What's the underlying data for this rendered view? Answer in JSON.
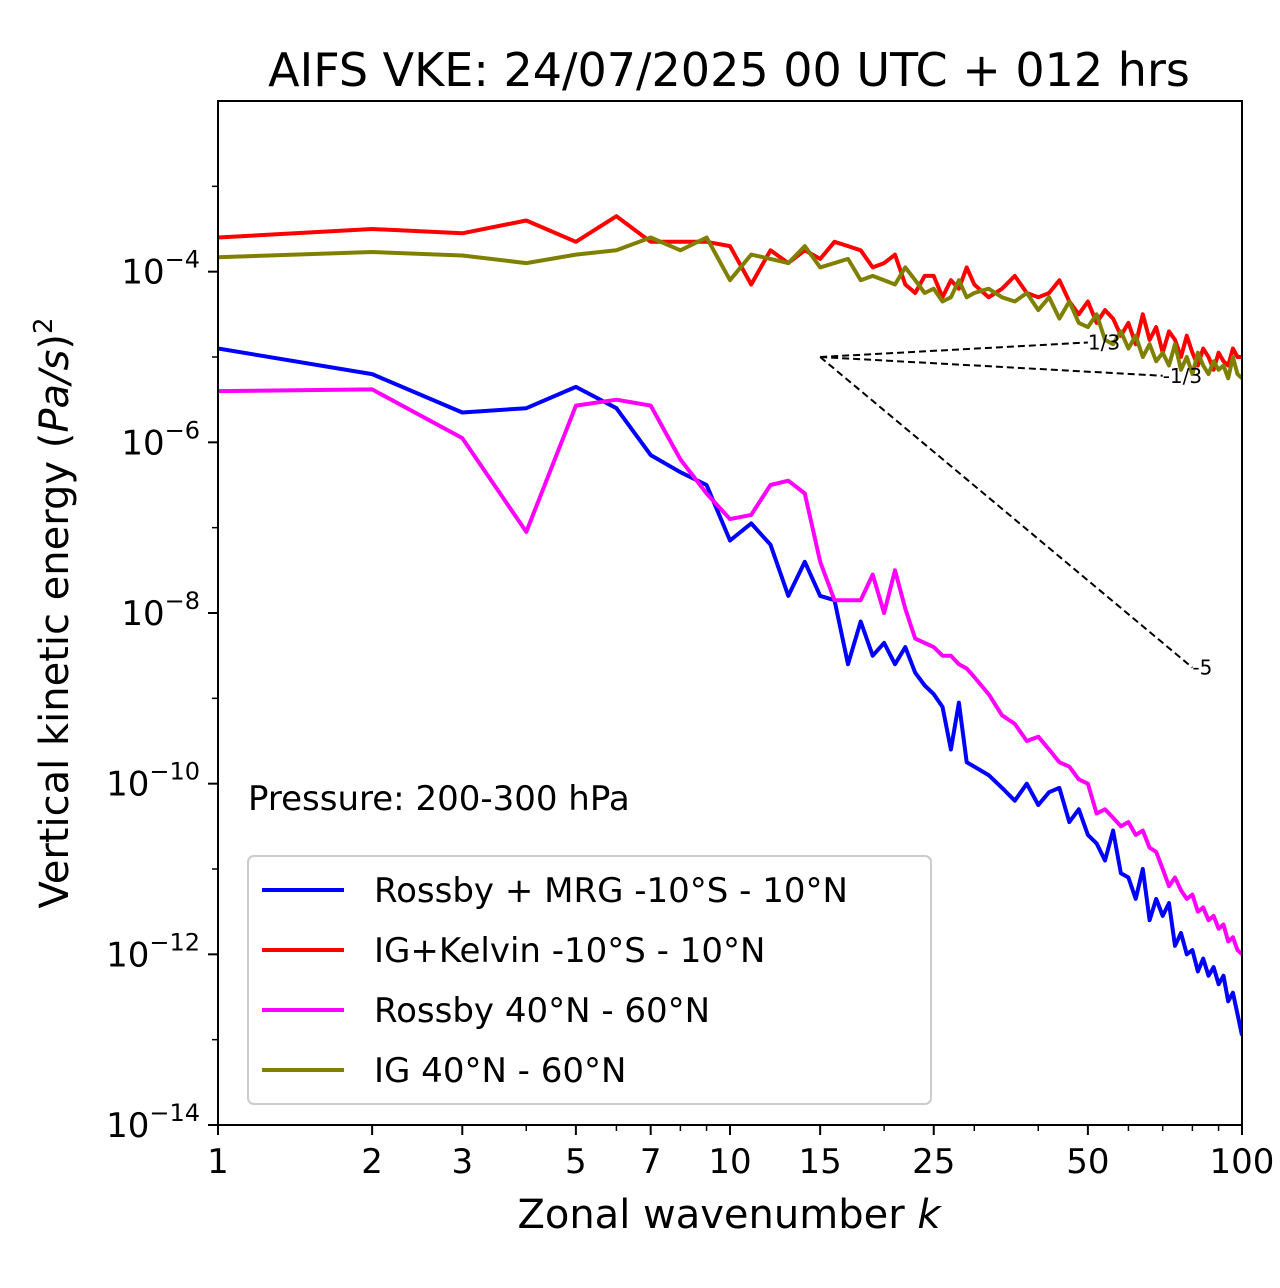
{
  "chart_data": {
    "type": "line",
    "title": "AIFS VKE: 24/07/2025 00 UTC + 012 hrs",
    "xlabel": "Zonal wavenumber k",
    "ylabel": "Vertical kinetic energy (Pa/s)^2",
    "x_scale": "log",
    "y_scale": "log",
    "xlim": [
      1,
      100
    ],
    "ylim": [
      1e-14,
      0.01
    ],
    "x_ticks": [
      1,
      2,
      3,
      5,
      7,
      10,
      15,
      25,
      50,
      100
    ],
    "x_tick_labels": [
      "1",
      "2",
      "3",
      "5",
      "7",
      "10",
      "15",
      "25",
      "50",
      "100"
    ],
    "y_ticks": [
      -14,
      -12,
      -10,
      -8,
      -6,
      -4
    ],
    "y_tick_base": "10",
    "y_tick_exponents": [
      "−14",
      "−12",
      "−10",
      "−8",
      "−6",
      "−4"
    ],
    "annotation": "Pressure: 200-300 hPa",
    "legend_position": "lower-left",
    "grid": false,
    "series": [
      {
        "name": "Rossby + MRG -10°S - 10°N",
        "color": "#0000ff",
        "x": [
          1,
          2,
          3,
          4,
          5,
          6,
          7,
          8,
          9,
          10,
          11,
          12,
          13,
          14,
          15,
          16,
          17,
          18,
          19,
          20,
          21,
          22,
          23,
          24,
          25,
          26,
          27,
          28,
          29,
          30,
          32,
          34,
          36,
          38,
          40,
          42,
          44,
          46,
          48,
          50,
          52,
          54,
          56,
          58,
          60,
          62,
          64,
          66,
          68,
          70,
          72,
          74,
          76,
          78,
          80,
          82,
          84,
          86,
          88,
          90,
          92,
          94,
          96,
          98,
          100
        ],
        "log10_values": [
          -4.9,
          -5.2,
          -5.65,
          -5.6,
          -5.35,
          -5.6,
          -6.15,
          -6.35,
          -6.5,
          -7.15,
          -6.95,
          -7.2,
          -7.8,
          -7.4,
          -7.8,
          -7.85,
          -8.6,
          -8.1,
          -8.5,
          -8.35,
          -8.6,
          -8.4,
          -8.7,
          -8.85,
          -8.95,
          -9.1,
          -9.6,
          -9.05,
          -9.75,
          -9.8,
          -9.9,
          -10.05,
          -10.2,
          -10.0,
          -10.25,
          -10.1,
          -10.05,
          -10.45,
          -10.3,
          -10.6,
          -10.7,
          -10.9,
          -10.55,
          -11.05,
          -11.1,
          -11.35,
          -11.0,
          -11.6,
          -11.35,
          -11.55,
          -11.4,
          -11.9,
          -11.75,
          -12.0,
          -11.95,
          -12.2,
          -12.05,
          -12.25,
          -12.15,
          -12.35,
          -12.25,
          -12.55,
          -12.45,
          -12.7,
          -12.95
        ]
      },
      {
        "name": "IG+Kelvin -10°S - 10°N",
        "color": "#ff0000",
        "x": [
          1,
          2,
          3,
          4,
          5,
          6,
          7,
          8,
          9,
          10,
          11,
          12,
          13,
          14,
          15,
          16,
          17,
          18,
          19,
          20,
          21,
          22,
          23,
          24,
          25,
          26,
          27,
          28,
          29,
          30,
          32,
          34,
          36,
          38,
          40,
          42,
          44,
          46,
          48,
          50,
          52,
          54,
          56,
          58,
          60,
          62,
          64,
          66,
          68,
          70,
          72,
          74,
          76,
          78,
          80,
          82,
          84,
          86,
          88,
          90,
          92,
          94,
          96,
          98,
          100
        ],
        "log10_values": [
          -3.6,
          -3.5,
          -3.55,
          -3.4,
          -3.65,
          -3.35,
          -3.65,
          -3.65,
          -3.65,
          -3.7,
          -4.15,
          -3.75,
          -3.9,
          -3.75,
          -3.85,
          -3.65,
          -3.7,
          -3.75,
          -3.95,
          -3.9,
          -3.8,
          -4.15,
          -4.25,
          -4.05,
          -4.05,
          -4.3,
          -4.1,
          -4.2,
          -3.95,
          -4.15,
          -4.3,
          -4.2,
          -4.05,
          -4.25,
          -4.3,
          -4.25,
          -4.1,
          -4.35,
          -4.5,
          -4.35,
          -4.6,
          -4.45,
          -4.55,
          -4.75,
          -4.6,
          -4.85,
          -4.5,
          -4.8,
          -4.65,
          -4.95,
          -4.7,
          -4.8,
          -5.0,
          -4.75,
          -4.95,
          -5.1,
          -4.9,
          -5.0,
          -5.15,
          -4.95,
          -5.05,
          -5.1,
          -4.9,
          -5.0,
          -5.0
        ]
      },
      {
        "name": "Rossby 40°N - 60°N",
        "color": "#ff00ff",
        "x": [
          1,
          2,
          3,
          4,
          5,
          6,
          7,
          8,
          9,
          10,
          11,
          12,
          13,
          14,
          15,
          16,
          17,
          18,
          19,
          20,
          21,
          22,
          23,
          24,
          25,
          26,
          27,
          28,
          29,
          30,
          32,
          34,
          36,
          38,
          40,
          42,
          44,
          46,
          48,
          50,
          52,
          54,
          56,
          58,
          60,
          62,
          64,
          66,
          68,
          70,
          72,
          74,
          76,
          78,
          80,
          82,
          84,
          86,
          88,
          90,
          92,
          94,
          96,
          98,
          100
        ],
        "log10_values": [
          -5.4,
          -5.38,
          -5.95,
          -7.05,
          -5.57,
          -5.5,
          -5.57,
          -6.2,
          -6.6,
          -6.9,
          -6.85,
          -6.5,
          -6.45,
          -6.6,
          -7.4,
          -7.85,
          -7.85,
          -7.85,
          -7.55,
          -8.0,
          -7.5,
          -7.95,
          -8.3,
          -8.35,
          -8.4,
          -8.5,
          -8.5,
          -8.6,
          -8.65,
          -8.75,
          -8.95,
          -9.2,
          -9.3,
          -9.5,
          -9.45,
          -9.6,
          -9.75,
          -9.8,
          -9.95,
          -10.0,
          -10.35,
          -10.3,
          -10.4,
          -10.5,
          -10.45,
          -10.6,
          -10.55,
          -10.75,
          -10.8,
          -11.0,
          -11.2,
          -11.1,
          -11.25,
          -11.35,
          -11.3,
          -11.5,
          -11.45,
          -11.6,
          -11.55,
          -11.7,
          -11.65,
          -11.85,
          -11.8,
          -11.95,
          -12.0
        ]
      },
      {
        "name": "IG 40°N - 60°N",
        "color": "#808000",
        "x": [
          1,
          2,
          3,
          4,
          5,
          6,
          7,
          8,
          9,
          10,
          11,
          12,
          13,
          14,
          15,
          16,
          17,
          18,
          19,
          20,
          21,
          22,
          23,
          24,
          25,
          26,
          27,
          28,
          29,
          30,
          32,
          34,
          36,
          38,
          40,
          42,
          44,
          46,
          48,
          50,
          52,
          54,
          56,
          58,
          60,
          62,
          64,
          66,
          68,
          70,
          72,
          74,
          76,
          78,
          80,
          82,
          84,
          86,
          88,
          90,
          92,
          94,
          96,
          98,
          100
        ],
        "log10_values": [
          -3.83,
          -3.77,
          -3.81,
          -3.9,
          -3.8,
          -3.75,
          -3.6,
          -3.75,
          -3.6,
          -4.1,
          -3.8,
          -3.85,
          -3.9,
          -3.7,
          -3.95,
          -3.9,
          -3.85,
          -4.1,
          -4.05,
          -4.1,
          -4.15,
          -3.95,
          -4.1,
          -4.25,
          -4.2,
          -4.35,
          -4.3,
          -4.1,
          -4.3,
          -4.25,
          -4.2,
          -4.3,
          -4.35,
          -4.25,
          -4.45,
          -4.3,
          -4.55,
          -4.35,
          -4.6,
          -4.65,
          -4.5,
          -4.8,
          -4.85,
          -4.7,
          -4.9,
          -4.75,
          -5.0,
          -4.85,
          -5.05,
          -4.95,
          -5.1,
          -4.85,
          -5.15,
          -5.0,
          -5.2,
          -4.95,
          -5.1,
          -5.2,
          -5.05,
          -5.15,
          -5.1,
          -5.25,
          -5.0,
          -5.2,
          -5.25
        ]
      }
    ],
    "reference_lines": [
      {
        "x": [
          15,
          50
        ],
        "log10_values": [
          -5.0,
          -4.83
        ],
        "label": "1/3",
        "style": "dashed",
        "color": "#000000"
      },
      {
        "x": [
          15,
          70
        ],
        "log10_values": [
          -5.0,
          -5.22
        ],
        "label": "-1/3",
        "style": "dashed",
        "color": "#000000"
      },
      {
        "x": [
          15,
          80
        ],
        "log10_values": [
          -5.0,
          -8.64
        ],
        "label": "-5",
        "style": "dashed",
        "color": "#000000"
      }
    ]
  }
}
